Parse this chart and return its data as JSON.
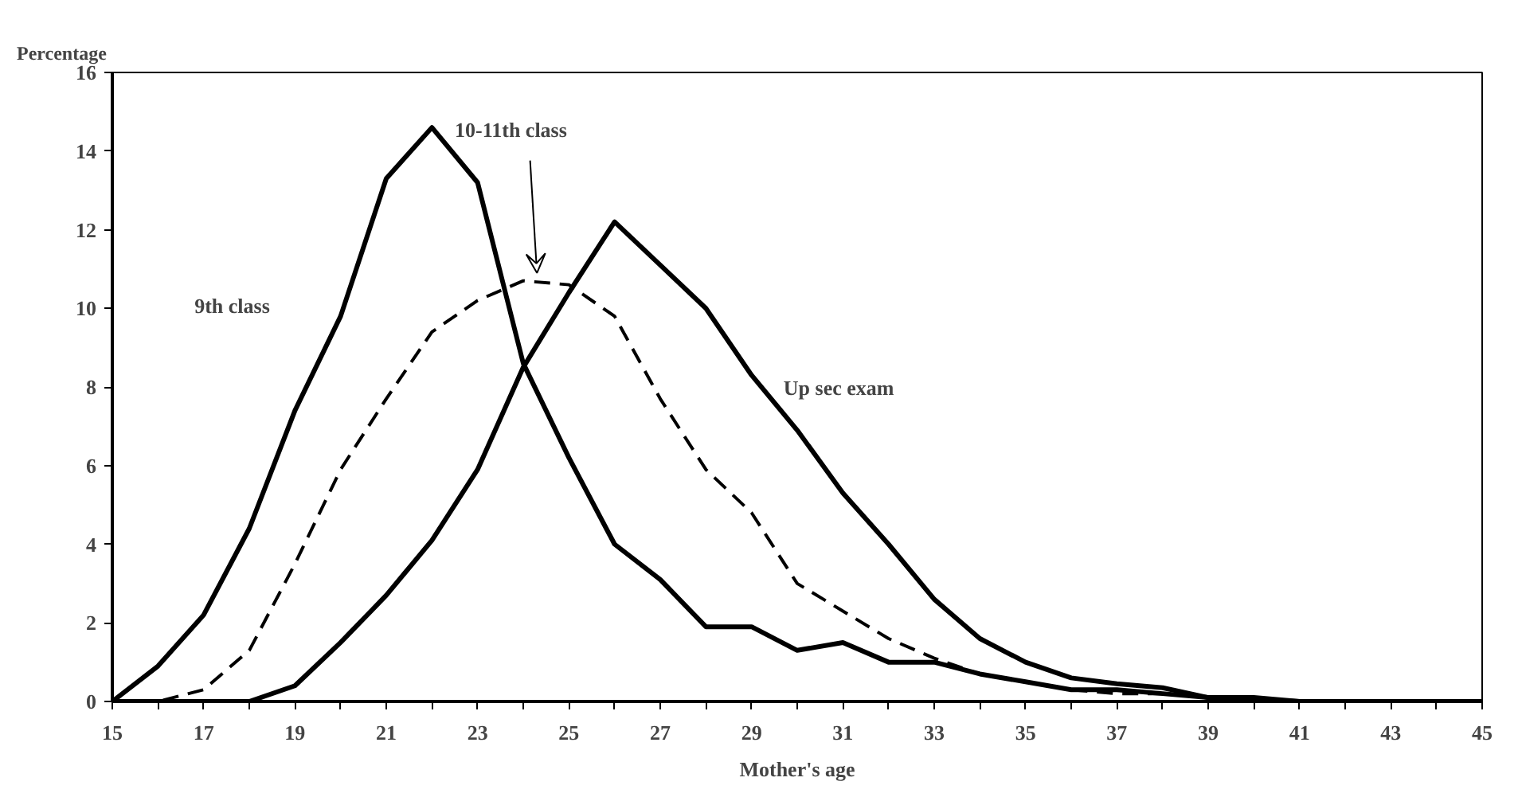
{
  "chart_data": {
    "type": "line",
    "xlabel": "Mother's age",
    "ylabel": "Percentage",
    "x": [
      15,
      16,
      17,
      18,
      19,
      20,
      21,
      22,
      23,
      24,
      25,
      26,
      27,
      28,
      29,
      30,
      31,
      32,
      33,
      34,
      35,
      36,
      37,
      38,
      39,
      40,
      41,
      42,
      43,
      44,
      45
    ],
    "series": [
      {
        "color": "#000000",
        "line_style": "solid",
        "values": [
          0,
          0.9,
          2.2,
          4.4,
          7.4,
          9.8,
          13.3,
          14.6,
          13.2,
          8.6,
          6.2,
          4.0,
          3.1,
          1.9,
          1.9,
          1.3,
          1.5,
          1.0,
          1.0,
          0.7,
          0.5,
          0.3,
          0.3,
          0.2,
          0.1,
          0.05,
          0,
          0,
          0,
          0,
          0
        ]
      },
      {
        "color": "#000000",
        "line_style": "dashed",
        "values": [
          0,
          0,
          0.3,
          1.3,
          3.5,
          5.9,
          7.7,
          9.4,
          10.2,
          10.7,
          10.6,
          9.8,
          7.7,
          5.9,
          4.8,
          3.0,
          2.3,
          1.6,
          1.1,
          0.7,
          0.5,
          0.3,
          0.2,
          0.2,
          0.1,
          0.05,
          0,
          0,
          0,
          0,
          0
        ]
      },
      {
        "color": "#000000",
        "line_style": "solid",
        "values": [
          0,
          0,
          0,
          0,
          0.4,
          1.5,
          2.7,
          4.1,
          5.9,
          8.5,
          10.4,
          12.2,
          11.1,
          10.0,
          8.3,
          6.9,
          5.3,
          4.0,
          2.6,
          1.6,
          1.0,
          0.6,
          0.45,
          0.35,
          0.1,
          0.1,
          0,
          0,
          0,
          0,
          0
        ]
      }
    ],
    "annotations": [
      "9th class",
      "10-11th class",
      "Up sec exam"
    ],
    "xlim": [
      15,
      45
    ],
    "xticks": [
      15,
      {
        "value": 16,
        "label": null
      },
      17,
      {
        "value": 18,
        "label": null
      },
      19,
      {
        "value": 20,
        "label": null
      },
      21,
      {
        "value": 22,
        "label": null
      },
      23,
      {
        "value": 24,
        "label": null
      },
      25,
      {
        "value": 26,
        "label": null
      },
      27,
      {
        "value": 28,
        "label": null
      },
      29,
      {
        "value": 30,
        "label": null
      },
      31,
      {
        "value": 32,
        "label": null
      },
      33,
      {
        "value": 34,
        "label": null
      },
      35,
      {
        "value": 36,
        "label": null
      },
      37,
      {
        "value": 38,
        "label": null
      },
      39,
      {
        "value": 40,
        "label": null
      },
      41,
      {
        "value": 42,
        "label": null
      },
      43,
      {
        "value": 44,
        "label": null
      },
      45
    ],
    "ylim": [
      0,
      16
    ],
    "yticks": [
      0,
      2,
      4,
      6,
      8,
      10,
      12,
      14,
      16
    ],
    "grid": false,
    "marker": "none"
  }
}
